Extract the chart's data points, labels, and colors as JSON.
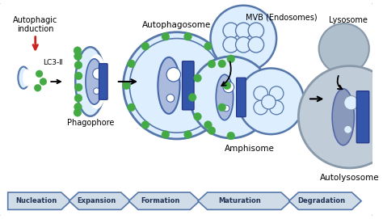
{
  "bg_color": "#ffffff",
  "border_color": "#aabbcc",
  "red_arrow_color": "#cc2222",
  "green_dot_color": "#44aa44",
  "cell_fill": "#ddeeff",
  "cell_border": "#5577aa",
  "cell_border2": "#6688bb",
  "organelle_fill": "#aabbdd",
  "organelle_border": "#4466aa",
  "blue_bar": "#3355aa",
  "blue_bar_border": "#223388",
  "lysosome_fill": "#b0bfcc",
  "lysosome_border": "#8899aa",
  "autolysosome_fill": "#c0cdd8",
  "mvb_fill": "#ddeeff",
  "mvb_border": "#5577aa",
  "stage_labels": [
    "Nucleation",
    "Expansion",
    "Formation",
    "Maturation",
    "Degradation"
  ],
  "stage_arrow_fc": "#d0dce8",
  "stage_arrow_ec": "#5577aa",
  "figsize": [
    4.74,
    2.71
  ],
  "dpi": 100
}
